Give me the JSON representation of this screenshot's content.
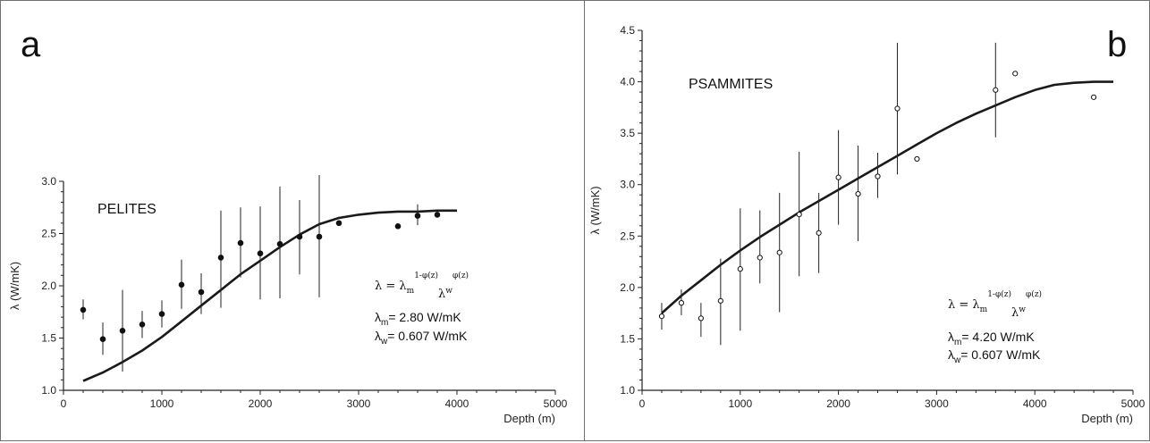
{
  "chart_data": [
    {
      "type": "scatter",
      "panel_letter": "a",
      "title": "PELITES",
      "xlabel": "Depth (m)",
      "ylabel": "λ (W/mK)",
      "xlim": [
        0,
        5000
      ],
      "ylim": [
        1.0,
        3.0
      ],
      "xticks": [
        0,
        1000,
        2000,
        3000,
        4000,
        5000
      ],
      "yticks": [
        1.0,
        1.5,
        2.0,
        2.5,
        3.0
      ],
      "xtick_labels": [
        "0",
        "1000",
        "2000",
        "3000",
        "4000",
        "5000"
      ],
      "ytick_labels": [
        "1.0",
        "1.5",
        "2.0",
        "2.5",
        "3.0"
      ],
      "marker": "filled",
      "points": [
        {
          "x": 200,
          "y": 1.77,
          "lo": 1.68,
          "hi": 1.87
        },
        {
          "x": 400,
          "y": 1.49,
          "lo": 1.34,
          "hi": 1.65
        },
        {
          "x": 600,
          "y": 1.57,
          "lo": 1.18,
          "hi": 1.96
        },
        {
          "x": 800,
          "y": 1.63,
          "lo": 1.5,
          "hi": 1.76
        },
        {
          "x": 1000,
          "y": 1.73,
          "lo": 1.6,
          "hi": 1.86
        },
        {
          "x": 1200,
          "y": 2.01,
          "lo": 1.78,
          "hi": 2.25
        },
        {
          "x": 1400,
          "y": 1.94,
          "lo": 1.73,
          "hi": 2.12
        },
        {
          "x": 1600,
          "y": 2.27,
          "lo": 1.79,
          "hi": 2.72
        },
        {
          "x": 1800,
          "y": 2.41,
          "lo": 2.08,
          "hi": 2.75
        },
        {
          "x": 2000,
          "y": 2.31,
          "lo": 1.87,
          "hi": 2.76
        },
        {
          "x": 2200,
          "y": 2.4,
          "lo": 1.88,
          "hi": 2.95
        },
        {
          "x": 2400,
          "y": 2.47,
          "lo": 2.11,
          "hi": 2.82
        },
        {
          "x": 2600,
          "y": 2.47,
          "lo": 1.89,
          "hi": 3.06
        },
        {
          "x": 2800,
          "y": 2.6,
          "lo": 2.6,
          "hi": 2.6
        },
        {
          "x": 3400,
          "y": 2.57,
          "lo": 2.57,
          "hi": 2.57
        },
        {
          "x": 3600,
          "y": 2.67,
          "lo": 2.58,
          "hi": 2.78
        },
        {
          "x": 3800,
          "y": 2.68,
          "lo": 2.68,
          "hi": 2.68
        }
      ],
      "curve": {
        "x": [
          200,
          400,
          600,
          800,
          1000,
          1200,
          1400,
          1600,
          1800,
          2000,
          2200,
          2400,
          2600,
          2800,
          3000,
          3200,
          3400,
          3600,
          3800,
          4000
        ],
        "y": [
          1.09,
          1.17,
          1.27,
          1.38,
          1.51,
          1.66,
          1.81,
          1.96,
          2.11,
          2.24,
          2.37,
          2.49,
          2.59,
          2.65,
          2.68,
          2.7,
          2.71,
          2.71,
          2.72,
          2.72
        ]
      },
      "formula": {
        "lhs": "λ = λ",
        "sub_m": "m",
        "sup_m": "1-φ(z)",
        "mid": "λ",
        "sub_w": "w",
        "sup_w": "φ(z)"
      },
      "params": [
        {
          "sym": "λ",
          "sub": "m",
          "text": "= 2.80  W/mK"
        },
        {
          "sym": "λ",
          "sub": "w",
          "text": "= 0.607  W/mK"
        }
      ]
    },
    {
      "type": "scatter",
      "panel_letter": "b",
      "title": "PSAMMITES",
      "xlabel": "Depth (m)",
      "ylabel": "λ (W/mK)",
      "xlim": [
        0,
        5000
      ],
      "ylim": [
        1.0,
        4.5
      ],
      "xticks": [
        0,
        1000,
        2000,
        3000,
        4000,
        5000
      ],
      "yticks": [
        1.0,
        1.5,
        2.0,
        2.5,
        3.0,
        3.5,
        4.0,
        4.5
      ],
      "xtick_labels": [
        "0",
        "1000",
        "2000",
        "3000",
        "4000",
        "5000"
      ],
      "ytick_labels": [
        "1.0",
        "1.5",
        "2.0",
        "2.5",
        "3.0",
        "3.5",
        "4.0",
        "4.5"
      ],
      "marker": "open",
      "points": [
        {
          "x": 200,
          "y": 1.72,
          "lo": 1.59,
          "hi": 1.85
        },
        {
          "x": 400,
          "y": 1.85,
          "lo": 1.73,
          "hi": 1.98
        },
        {
          "x": 600,
          "y": 1.7,
          "lo": 1.52,
          "hi": 1.85
        },
        {
          "x": 800,
          "y": 1.87,
          "lo": 1.44,
          "hi": 2.28
        },
        {
          "x": 1000,
          "y": 2.18,
          "lo": 1.58,
          "hi": 2.77
        },
        {
          "x": 1200,
          "y": 2.29,
          "lo": 2.04,
          "hi": 2.75
        },
        {
          "x": 1400,
          "y": 2.34,
          "lo": 1.76,
          "hi": 2.92
        },
        {
          "x": 1600,
          "y": 2.71,
          "lo": 2.11,
          "hi": 3.32
        },
        {
          "x": 1800,
          "y": 2.53,
          "lo": 2.14,
          "hi": 2.92
        },
        {
          "x": 2000,
          "y": 3.07,
          "lo": 2.61,
          "hi": 3.53
        },
        {
          "x": 2200,
          "y": 2.91,
          "lo": 2.45,
          "hi": 3.38
        },
        {
          "x": 2400,
          "y": 3.08,
          "lo": 2.87,
          "hi": 3.31
        },
        {
          "x": 2600,
          "y": 3.74,
          "lo": 3.1,
          "hi": 4.38
        },
        {
          "x": 2800,
          "y": 3.25,
          "lo": 3.25,
          "hi": 3.25
        },
        {
          "x": 3600,
          "y": 3.92,
          "lo": 3.46,
          "hi": 4.38
        },
        {
          "x": 3800,
          "y": 4.08,
          "lo": 4.08,
          "hi": 4.08
        },
        {
          "x": 4600,
          "y": 3.85,
          "lo": 3.85,
          "hi": 3.85
        }
      ],
      "curve": {
        "x": [
          200,
          400,
          600,
          800,
          1000,
          1200,
          1400,
          1600,
          1800,
          2000,
          2200,
          2400,
          2600,
          2800,
          3000,
          3200,
          3400,
          3600,
          3800,
          4000,
          4200,
          4400,
          4600,
          4800
        ],
        "y": [
          1.75,
          1.92,
          2.07,
          2.22,
          2.36,
          2.49,
          2.61,
          2.73,
          2.84,
          2.95,
          3.06,
          3.17,
          3.28,
          3.39,
          3.5,
          3.6,
          3.69,
          3.77,
          3.85,
          3.92,
          3.97,
          3.99,
          4.0,
          4.0
        ]
      },
      "formula": {
        "lhs": "λ = λ",
        "sub_m": "m",
        "sup_m": "1-φ(z)",
        "mid": "λ",
        "sub_w": "w",
        "sup_w": "φ(z)"
      },
      "params": [
        {
          "sym": "λ",
          "sub": "m",
          "text": "= 4.20  W/mK"
        },
        {
          "sym": "λ",
          "sub": "w",
          "text": "= 0.607  W/mK"
        }
      ]
    }
  ]
}
